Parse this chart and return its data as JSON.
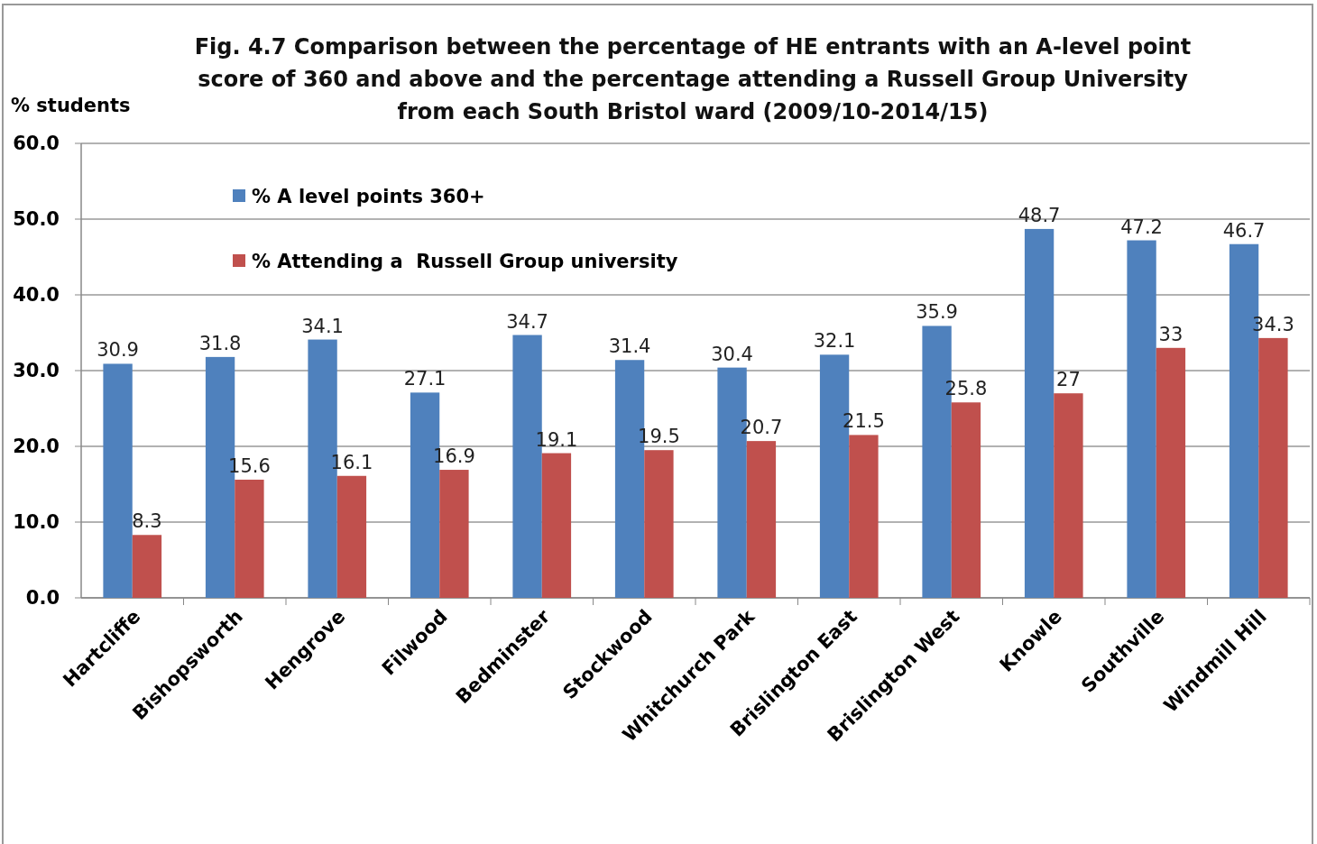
{
  "chart_data": {
    "type": "bar",
    "title": "Fig. 4.7 Comparison between the percentage of HE entrants with an A-level point score of 360 and above and the percentage  attending a Russell Group University from each South Bristol ward  (2009/10-2014/15)",
    "ylabel": "% students",
    "categories": [
      "Hartcliffe",
      "Bishopsworth",
      "Hengrove",
      "Filwood",
      "Bedminster",
      "Stockwood",
      "Whitchurch Park",
      "Brislington East",
      "Brislington West",
      "Knowle",
      "Southville",
      "Windmill Hill"
    ],
    "series": [
      {
        "name": "% A level points 360+",
        "color": "#4f81bd",
        "values": [
          30.9,
          31.8,
          34.1,
          27.1,
          34.7,
          31.4,
          30.4,
          32.1,
          35.9,
          48.7,
          47.2,
          46.7
        ]
      },
      {
        "name": "% Attending a  Russell Group university",
        "color": "#c0504d",
        "values": [
          8.3,
          15.6,
          16.1,
          16.9,
          19.1,
          19.5,
          20.7,
          21.5,
          25.8,
          27,
          33,
          34.3
        ]
      }
    ],
    "ylim": [
      0,
      60
    ],
    "yticks": [
      {
        "value": 0,
        "label": "0.0"
      },
      {
        "value": 10,
        "label": "10.0"
      },
      {
        "value": 20,
        "label": "20.0"
      },
      {
        "value": 30,
        "label": "30.0"
      },
      {
        "value": 40,
        "label": "40.0"
      },
      {
        "value": 50,
        "label": "50.0"
      },
      {
        "value": 60,
        "label": "60.0"
      }
    ],
    "grid": "y",
    "legend": "top left",
    "data_labels": true
  }
}
